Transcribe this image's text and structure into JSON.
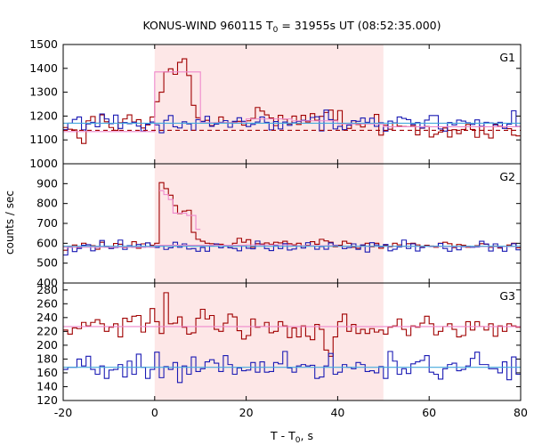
{
  "title_pre": "KONUS-WIND 960115 T",
  "title_sub": "0",
  "title_post": " = 31955s UT (08:52:35.000)",
  "ylabel": "counts / sec",
  "xlabel_pre": "T - T",
  "xlabel_sub": "0",
  "xlabel_post": ", s",
  "chart_data": [
    {
      "panel": "G1",
      "type": "line",
      "xlim": [
        -20,
        80
      ],
      "ylim": [
        1000,
        1500
      ],
      "yticks": [
        1000,
        1100,
        1200,
        1300,
        1400,
        1500
      ],
      "xticks": [
        -20,
        0,
        20,
        40,
        60,
        80
      ],
      "highlight_interval": [
        0,
        50
      ],
      "series": [
        {
          "style": "step",
          "color": "#a00000",
          "step": 1,
          "x_start": -20,
          "values": [
            1152,
            1145,
            1142,
            1108,
            1085,
            1180,
            1198,
            1170,
            1205,
            1176,
            1152,
            1140,
            1172,
            1188,
            1205,
            1175,
            1185,
            1150,
            1163,
            1196,
            1260,
            1300,
            1385,
            1398,
            1375,
            1425,
            1440,
            1370,
            1245,
            1193,
            1178,
            1182,
            1160,
            1172,
            1196,
            1172,
            1172,
            1176,
            1178,
            1162,
            1180,
            1190,
            1236,
            1221,
            1205,
            1192,
            1160,
            1203,
            1187,
            1167,
            1200,
            1165,
            1203,
            1175,
            1210,
            1182,
            1199,
            1215,
            1225,
            1182,
            1223,
            1142,
            1148,
            1180,
            1165,
            1154,
            1170,
            1168,
            1207,
            1120,
            1162,
            1145,
            1171,
            1158,
            1156,
            1155,
            1160,
            1121,
            1149,
            1156,
            1112,
            1124,
            1133,
            1150,
            1112,
            1143,
            1126,
            1144,
            1165,
            1144,
            1111,
            1157,
            1124,
            1108,
            1166,
            1157,
            1154,
            1147,
            1120,
            1117
          ]
        },
        {
          "style": "step",
          "color": "#1a1ab4",
          "step": 1,
          "x_start": -20,
          "values": [
            1143,
            1170,
            1186,
            1196,
            1142,
            1167,
            1174,
            1155,
            1209,
            1188,
            1168,
            1204,
            1148,
            1173,
            1168,
            1174,
            1158,
            1137,
            1166,
            1175,
            1163,
            1130,
            1182,
            1202,
            1155,
            1150,
            1176,
            1167,
            1140,
            1185,
            1177,
            1199,
            1157,
            1166,
            1174,
            1181,
            1153,
            1178,
            1193,
            1178,
            1156,
            1165,
            1175,
            1196,
            1174,
            1142,
            1177,
            1146,
            1175,
            1161,
            1172,
            1178,
            1182,
            1181,
            1194,
            1197,
            1138,
            1225,
            1185,
            1146,
            1157,
            1143,
            1162,
            1181,
            1178,
            1192,
            1174,
            1191,
            1157,
            1172,
            1137,
            1179,
            1171,
            1196,
            1190,
            1185,
            1165,
            1173,
            1150,
            1183,
            1202,
            1202,
            1146,
            1137,
            1173,
            1163,
            1183,
            1179,
            1172,
            1165,
            1184,
            1156,
            1174,
            1171,
            1163,
            1174,
            1148,
            1166,
            1222,
            1156
          ]
        },
        {
          "style": "step",
          "color": "#ee88cc",
          "step": 10,
          "x_start": -20,
          "values": [
            1135,
            1135,
            1385,
            1172,
            1188,
            1180,
            1167,
            1155,
            1155,
            1155
          ]
        },
        {
          "style": "line",
          "color": "#44aadd",
          "x": [
            -20,
            80
          ],
          "values": [
            1170,
            1170
          ]
        },
        {
          "style": "dashed",
          "color": "#a00000",
          "x": [
            -20,
            80
          ],
          "values": [
            1140,
            1140
          ]
        }
      ]
    },
    {
      "panel": "G2",
      "type": "line",
      "xlim": [
        -20,
        80
      ],
      "ylim": [
        400,
        1000
      ],
      "yticks": [
        400,
        500,
        600,
        700,
        800,
        900
      ],
      "xticks": [
        -20,
        0,
        20,
        40,
        60,
        80
      ],
      "highlight_interval": [
        0,
        50
      ],
      "series": [
        {
          "style": "step",
          "color": "#a00000",
          "step": 1,
          "x_start": -20,
          "values": [
            565,
            585,
            591,
            576,
            600,
            592,
            588,
            570,
            605,
            585,
            574,
            599,
            595,
            578,
            588,
            608,
            575,
            597,
            602,
            590,
            600,
            905,
            875,
            842,
            790,
            750,
            762,
            766,
            655,
            620,
            610,
            600,
            598,
            592,
            595,
            590,
            585,
            600,
            625,
            605,
            618,
            580,
            598,
            596,
            602,
            595,
            605,
            602,
            610,
            598,
            592,
            600,
            585,
            590,
            608,
            595,
            620,
            612,
            605,
            582,
            590,
            610,
            600,
            580,
            575,
            590,
            600,
            582,
            600,
            575,
            590,
            582,
            600,
            592,
            585,
            598,
            600,
            592,
            580,
            590,
            586,
            580,
            600,
            605,
            598,
            578,
            594,
            590,
            580,
            583,
            588,
            598,
            595,
            580,
            586,
            576,
            584,
            591,
            600,
            577
          ]
        },
        {
          "style": "step",
          "color": "#1a1ab4",
          "step": 1,
          "x_start": -20,
          "values": [
            541,
            580,
            558,
            574,
            590,
            593,
            562,
            580,
            614,
            584,
            574,
            578,
            616,
            569,
            588,
            580,
            594,
            580,
            602,
            583,
            579,
            590,
            569,
            577,
            605,
            580,
            597,
            571,
            573,
            560,
            579,
            560,
            586,
            597,
            577,
            587,
            577,
            574,
            562,
            590,
            575,
            572,
            611,
            592,
            573,
            563,
            588,
            573,
            598,
            566,
            571,
            586,
            576,
            603,
            586,
            570,
            583,
            570,
            602,
            590,
            586,
            573,
            578,
            597,
            569,
            592,
            556,
            603,
            592,
            582,
            594,
            562,
            570,
            581,
            616,
            574,
            597,
            561,
            578,
            586,
            583,
            585,
            599,
            574,
            560,
            582,
            567,
            582,
            585,
            580,
            581,
            610,
            596,
            561,
            597,
            580,
            560,
            584,
            598,
            567
          ]
        },
        {
          "style": "step",
          "color": "#ee88cc",
          "step": 10,
          "x_start": -20,
          "values": [
            580,
            580,
            590,
            590,
            592,
            588,
            585,
            585,
            583,
            583
          ]
        },
        {
          "style": "stepsegs",
          "color": "#ee88cc",
          "segments": [
            [
              1,
              2,
              865
            ],
            [
              2,
              3,
              845
            ],
            [
              3,
              4,
              820
            ],
            [
              4,
              7,
              752
            ],
            [
              7,
              9,
              740
            ],
            [
              9,
              10,
              670
            ]
          ]
        },
        {
          "style": "line",
          "color": "#44aadd",
          "x": [
            -20,
            80
          ],
          "values": [
            585,
            585
          ]
        }
      ]
    },
    {
      "panel": "G3",
      "type": "line",
      "xlim": [
        -20,
        80
      ],
      "ylim": [
        120,
        290
      ],
      "yticks": [
        120,
        140,
        160,
        180,
        200,
        220,
        240,
        260,
        280
      ],
      "xticks": [
        -20,
        0,
        20,
        40,
        60,
        80
      ],
      "highlight_interval": [
        0,
        50
      ],
      "series": [
        {
          "style": "step",
          "color": "#a00000",
          "step": 1,
          "x_start": -20,
          "values": [
            222,
            216,
            225,
            224,
            233,
            228,
            233,
            237,
            231,
            220,
            226,
            231,
            212,
            239,
            234,
            242,
            243,
            219,
            232,
            253,
            234,
            217,
            276,
            231,
            232,
            241,
            226,
            216,
            218,
            239,
            252,
            238,
            243,
            223,
            220,
            232,
            245,
            241,
            221,
            209,
            214,
            238,
            226,
            227,
            233,
            218,
            220,
            234,
            228,
            211,
            225,
            212,
            228,
            213,
            208,
            230,
            223,
            193,
            184,
            212,
            234,
            245,
            220,
            230,
            217,
            223,
            217,
            224,
            219,
            222,
            216,
            226,
            228,
            238,
            223,
            214,
            228,
            226,
            232,
            242,
            231,
            215,
            220,
            227,
            231,
            223,
            212,
            214,
            234,
            222,
            234,
            227,
            222,
            231,
            213,
            228,
            220,
            231,
            228,
            226
          ]
        },
        {
          "style": "step",
          "color": "#1a1ab4",
          "step": 1,
          "x_start": -20,
          "values": [
            165,
            168,
            168,
            180,
            170,
            184,
            165,
            158,
            170,
            152,
            164,
            165,
            172,
            154,
            177,
            158,
            187,
            168,
            152,
            165,
            190,
            153,
            169,
            165,
            175,
            146,
            170,
            158,
            183,
            162,
            166,
            176,
            179,
            174,
            162,
            185,
            172,
            158,
            167,
            163,
            164,
            175,
            161,
            176,
            161,
            162,
            175,
            173,
            191,
            167,
            161,
            170,
            172,
            170,
            171,
            152,
            154,
            170,
            188,
            158,
            161,
            172,
            168,
            166,
            175,
            172,
            162,
            163,
            160,
            169,
            152,
            191,
            177,
            158,
            166,
            159,
            173,
            176,
            178,
            185,
            161,
            158,
            151,
            166,
            172,
            174,
            163,
            165,
            170,
            181,
            190,
            172,
            172,
            166,
            166,
            160,
            176,
            150,
            183,
            158
          ]
        },
        {
          "style": "line",
          "color": "#ee88cc",
          "x": [
            -20,
            80
          ],
          "values": [
            227,
            227
          ]
        },
        {
          "style": "line",
          "color": "#44aadd",
          "x": [
            -20,
            80
          ],
          "values": [
            168,
            168
          ]
        }
      ]
    }
  ]
}
